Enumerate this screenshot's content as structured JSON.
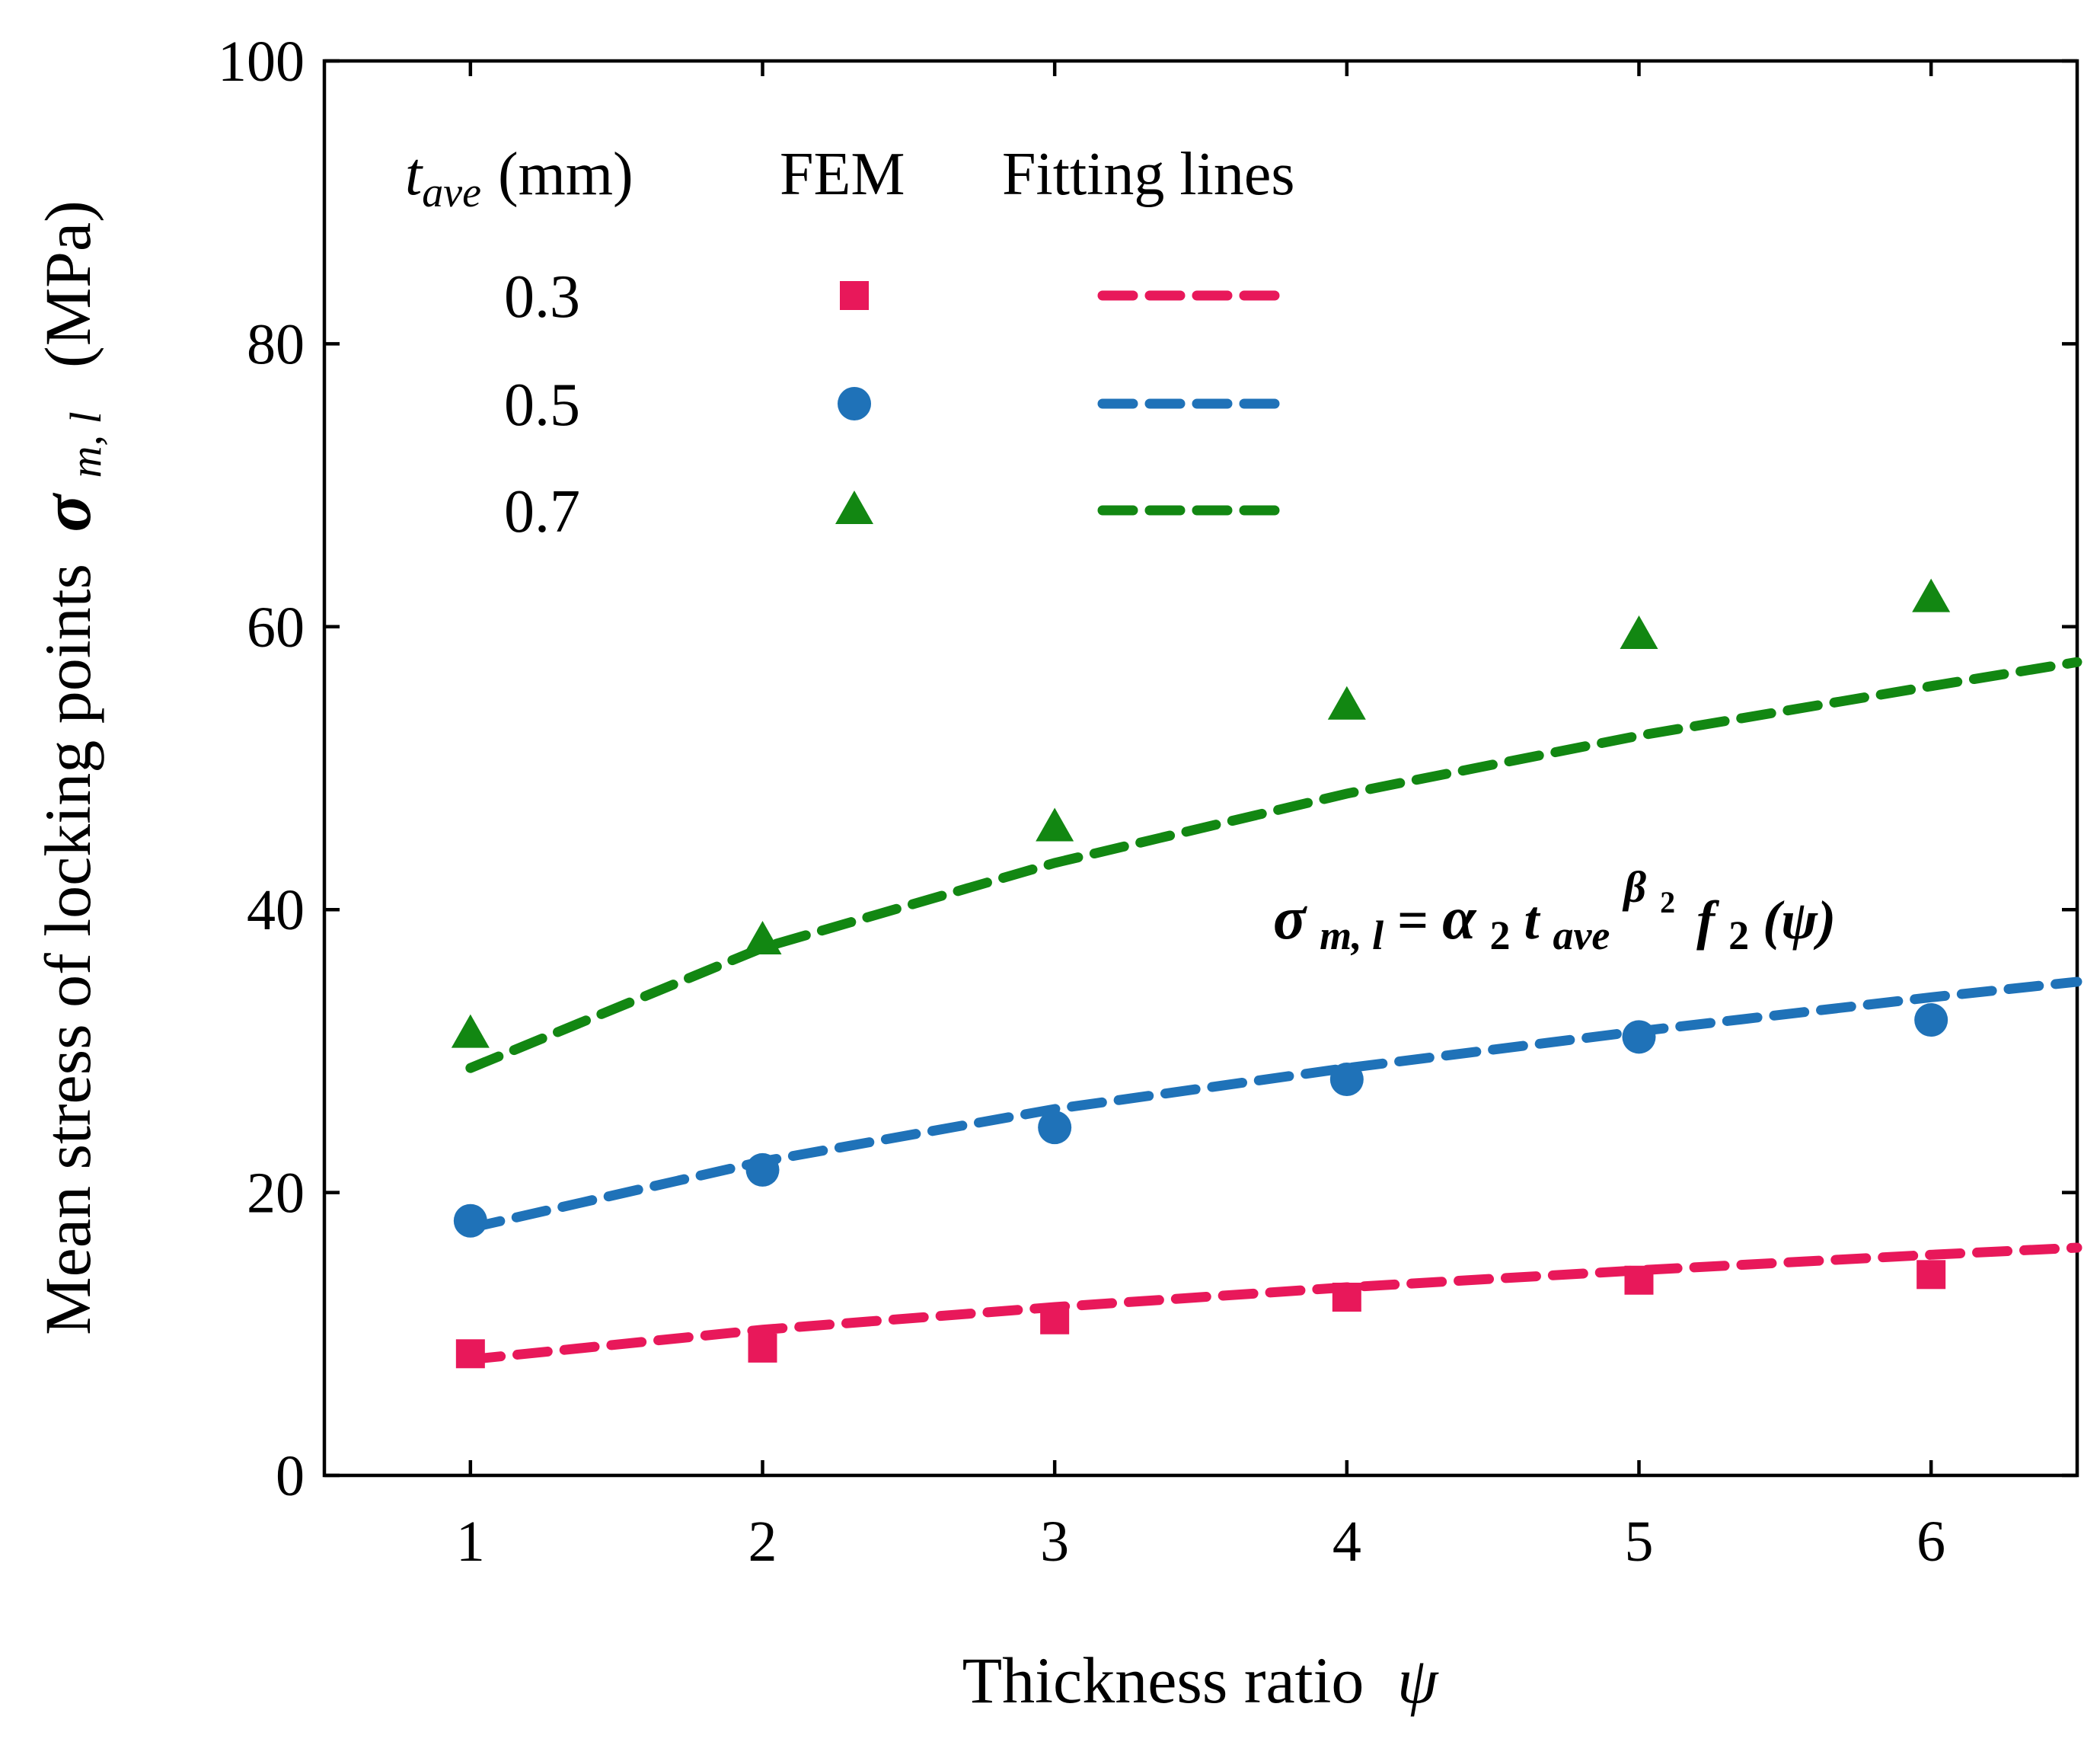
{
  "chart_data": {
    "type": "scatter",
    "x": [
      1,
      2,
      3,
      4,
      5,
      6
    ],
    "xlabel": "Thickness ratio",
    "xlabel_symbol": "ψ",
    "ylabel": "Mean stress of locking points",
    "ylabel_symbol": "σ",
    "ylabel_symbol_sub": "m, l",
    "ylabel_unit": "(MPa)",
    "xlim": [
      0.5,
      6.5
    ],
    "ylim": [
      0,
      100
    ],
    "xticks": [
      1,
      2,
      3,
      4,
      5,
      6
    ],
    "yticks": [
      0,
      20,
      40,
      60,
      80,
      100
    ],
    "grid": false,
    "legend": {
      "placement": "top-left",
      "header_symbol": "t",
      "header_symbol_sub": "ave",
      "header_unit": "(mm)",
      "col_fem": "FEM",
      "col_fit": "Fitting lines"
    },
    "series": [
      {
        "name": "0.3",
        "color": "#e8185a",
        "marker": "square",
        "fem": [
          8.6,
          9.0,
          11.0,
          12.6,
          13.8,
          14.2
        ],
        "fit": {
          "x": [
            1,
            2,
            3,
            4,
            5,
            6,
            6.5
          ],
          "y": [
            8.2,
            10.3,
            11.9,
            13.3,
            14.5,
            15.6,
            16.1
          ]
        }
      },
      {
        "name": "0.5",
        "color": "#1f72b8",
        "marker": "circle",
        "fem": [
          18.0,
          21.6,
          24.6,
          28.0,
          31.0,
          32.2
        ],
        "fit": {
          "x": [
            1,
            2,
            3,
            4,
            5,
            6,
            6.5
          ],
          "y": [
            17.5,
            22.2,
            25.9,
            28.8,
            31.4,
            33.8,
            34.9
          ]
        }
      },
      {
        "name": "0.7",
        "color": "#128712",
        "marker": "triangle",
        "fem": [
          31.2,
          37.8,
          45.8,
          54.4,
          59.4,
          62.0
        ],
        "fit": {
          "x": [
            1,
            2,
            3,
            4,
            5,
            6,
            6.5
          ],
          "y": [
            28.8,
            37.3,
            43.3,
            48.2,
            52.3,
            55.8,
            57.5
          ]
        }
      }
    ],
    "annotation": {
      "lhs": "σ",
      "lhs_sub": "m, l",
      "eq": " =",
      "alpha": "α",
      "alpha_sub": "2",
      "t": " t",
      "t_sub": "ave",
      "beta": "β",
      "beta_sub": "2",
      "f": "f",
      "f_sub": "2",
      "arg": "(ψ)"
    }
  }
}
